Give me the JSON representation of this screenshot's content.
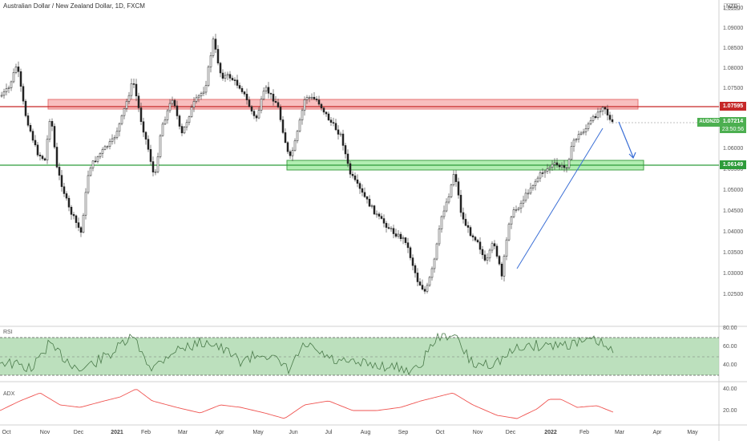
{
  "header": {
    "title": "Australian Dollar / New Zealand Dollar, 1D, FXCM",
    "unit": "NZD"
  },
  "price_axis": {
    "ticks": [
      "1.09500",
      "1.09000",
      "1.08500",
      "1.08000",
      "1.07500",
      "1.07000",
      "1.06500",
      "1.06000",
      "1.05500",
      "1.05000",
      "1.04500",
      "1.04000",
      "1.03500",
      "1.03000",
      "1.02500"
    ],
    "resistance_tag": "1.07595",
    "current_symbol_tag": "AUDNZD",
    "current_price_tag": "1.07214",
    "countdown": "23:50:56",
    "support_tag": "1.06149",
    "colors": {
      "resistance": "#c62828",
      "support": "#2e9c3a",
      "current": "#4caf50"
    }
  },
  "rsi_pane": {
    "label": "RSI",
    "ticks": [
      "80.00",
      "60.00",
      "40.00"
    ],
    "band_color": "#a5d6a7"
  },
  "adx_pane": {
    "label": "ADX",
    "ticks": [
      "40.00",
      "20.00"
    ],
    "line_color": "#ef5350"
  },
  "time_axis": {
    "labels": [
      "Oct",
      "Nov",
      "Dec",
      "2021",
      "Feb",
      "Mar",
      "Apr",
      "May",
      "Jun",
      "Jul",
      "Aug",
      "Sep",
      "Oct",
      "Nov",
      "Dec",
      "2022",
      "Feb",
      "Mar",
      "Apr",
      "May"
    ]
  },
  "drawings": {
    "resistance_zone": "1.0752 to 1.0778",
    "support_zone": "1.0602 to 1.0626",
    "trendline_color": "#3b6fd6",
    "forecast_arrow_color": "#3b6fd6"
  }
}
